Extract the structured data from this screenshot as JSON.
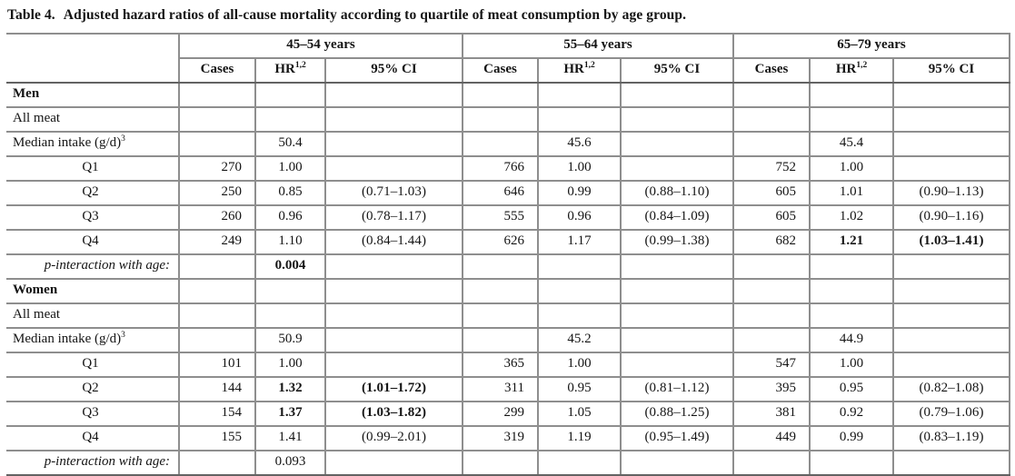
{
  "colors": {
    "grid_line": "#8e8e8e",
    "header_rule": "#636363",
    "text": "#141414",
    "background": "#ffffff"
  },
  "title": {
    "label": "Table 4.",
    "caption": "Adjusted hazard ratios of all-cause mortality according to quartile of meat consumption by age group."
  },
  "table": {
    "groups": [
      "45–54 years",
      "55–64 years",
      "65–79 years"
    ],
    "sub_headers": {
      "cases": "Cases",
      "hr": "HR",
      "hr_sup": "1,2",
      "ci": "95% CI"
    },
    "column_types": [
      "cases",
      "hr",
      "ci"
    ],
    "rows": [
      {
        "label": "Men",
        "label_style": "section",
        "cells": [
          "",
          "",
          "",
          "",
          "",
          "",
          "",
          "",
          ""
        ]
      },
      {
        "label": "All meat",
        "label_style": "plain",
        "cells": [
          "",
          "",
          "",
          "",
          "",
          "",
          "",
          "",
          ""
        ]
      },
      {
        "label": "Median intake (g/d)",
        "label_sup": "3",
        "label_style": "plain",
        "cells": [
          "",
          "50.4",
          "",
          "",
          "45.6",
          "",
          "",
          "45.4",
          ""
        ]
      },
      {
        "label": "Q1",
        "label_style": "center",
        "cells": [
          "270",
          "1.00",
          "",
          "766",
          "1.00",
          "",
          "752",
          "1.00",
          ""
        ]
      },
      {
        "label": "Q2",
        "label_style": "center",
        "cells": [
          "250",
          "0.85",
          "(0.71–1.03)",
          "646",
          "0.99",
          "(0.88–1.10)",
          "605",
          "1.01",
          "(0.90–1.13)"
        ]
      },
      {
        "label": "Q3",
        "label_style": "center",
        "cells": [
          "260",
          "0.96",
          "(0.78–1.17)",
          "555",
          "0.96",
          "(0.84–1.09)",
          "605",
          "1.02",
          "(0.90–1.16)"
        ]
      },
      {
        "label": "Q4",
        "label_style": "center",
        "cells": [
          "249",
          "1.10",
          "(0.84–1.44)",
          "626",
          "1.17",
          "(0.99–1.38)",
          "682",
          "1.21",
          "(1.03–1.41)"
        ],
        "bold_cells": [
          7,
          8
        ]
      },
      {
        "label": "p-interaction with age:",
        "label_style": "pvalue",
        "cells": [
          "",
          "0.004",
          "",
          "",
          "",
          "",
          "",
          "",
          ""
        ],
        "bold_cells": [
          1
        ]
      },
      {
        "label": "Women",
        "label_style": "section",
        "cells": [
          "",
          "",
          "",
          "",
          "",
          "",
          "",
          "",
          ""
        ]
      },
      {
        "label": "All meat",
        "label_style": "plain",
        "cells": [
          "",
          "",
          "",
          "",
          "",
          "",
          "",
          "",
          ""
        ]
      },
      {
        "label": "Median intake (g/d)",
        "label_sup": "3",
        "label_style": "plain",
        "cells": [
          "",
          "50.9",
          "",
          "",
          "45.2",
          "",
          "",
          "44.9",
          ""
        ]
      },
      {
        "label": "Q1",
        "label_style": "center",
        "cells": [
          "101",
          "1.00",
          "",
          "365",
          "1.00",
          "",
          "547",
          "1.00",
          ""
        ]
      },
      {
        "label": "Q2",
        "label_style": "center",
        "cells": [
          "144",
          "1.32",
          "(1.01–1.72)",
          "311",
          "0.95",
          "(0.81–1.12)",
          "395",
          "0.95",
          "(0.82–1.08)"
        ],
        "bold_cells": [
          1,
          2
        ]
      },
      {
        "label": "Q3",
        "label_style": "center",
        "cells": [
          "154",
          "1.37",
          "(1.03–1.82)",
          "299",
          "1.05",
          "(0.88–1.25)",
          "381",
          "0.92",
          "(0.79–1.06)"
        ],
        "bold_cells": [
          1,
          2
        ]
      },
      {
        "label": "Q4",
        "label_style": "center",
        "cells": [
          "155",
          "1.41",
          "(0.99–2.01)",
          "319",
          "1.19",
          "(0.95–1.49)",
          "449",
          "0.99",
          "(0.83–1.19)"
        ]
      },
      {
        "label": "p-interaction with age:",
        "label_style": "pvalue",
        "cells": [
          "",
          "0.093",
          "",
          "",
          "",
          "",
          "",
          "",
          ""
        ]
      }
    ]
  }
}
